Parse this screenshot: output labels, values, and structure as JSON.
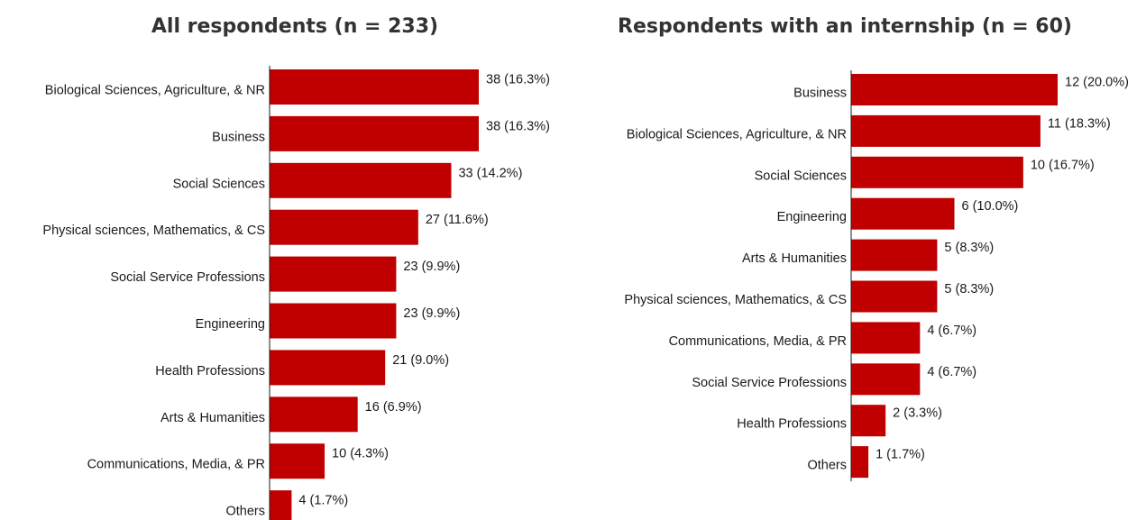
{
  "chart_data": [
    {
      "type": "bar",
      "orientation": "horizontal",
      "title": "All respondents (n = 233)",
      "categories": [
        "Biological Sciences, Agriculture, & NR",
        "Business",
        "Social Sciences",
        "Physical sciences, Mathematics, & CS",
        "Social Service Professions",
        "Engineering",
        "Health Professions",
        "Arts & Humanities",
        "Communications, Media, & PR",
        "Others"
      ],
      "values": [
        38,
        38,
        33,
        27,
        23,
        23,
        21,
        16,
        10,
        4
      ],
      "value_labels": [
        "38 (16.3%)",
        "38 (16.3%)",
        "33 (14.2%)",
        "27 (11.6%)",
        "23 (9.9%)",
        "23 (9.9%)",
        "21 (9.0%)",
        "16 (6.9%)",
        "10 (4.3%)",
        "4 (1.7%)"
      ],
      "bar_color": "#c00000",
      "grid": false,
      "legend": "none"
    },
    {
      "type": "bar",
      "orientation": "horizontal",
      "title": "Respondents with an internship (n = 60)",
      "categories": [
        "Business",
        "Biological Sciences, Agriculture, & NR",
        "Social Sciences",
        "Engineering",
        "Arts & Humanities",
        "Physical sciences, Mathematics, & CS",
        "Communications, Media, & PR",
        "Social Service Professions",
        "Health Professions",
        "Others"
      ],
      "values": [
        12,
        11,
        10,
        6,
        5,
        5,
        4,
        4,
        2,
        1
      ],
      "value_labels": [
        "12 (20.0%)",
        "11 (18.3%)",
        "10 (16.7%)",
        "6 (10.0%)",
        "5 (8.3%)",
        "5 (8.3%)",
        "4 (6.7%)",
        "4 (6.7%)",
        "2 (3.3%)",
        "1 (1.7%)"
      ],
      "bar_color": "#c00000",
      "grid": false,
      "legend": "none"
    }
  ]
}
